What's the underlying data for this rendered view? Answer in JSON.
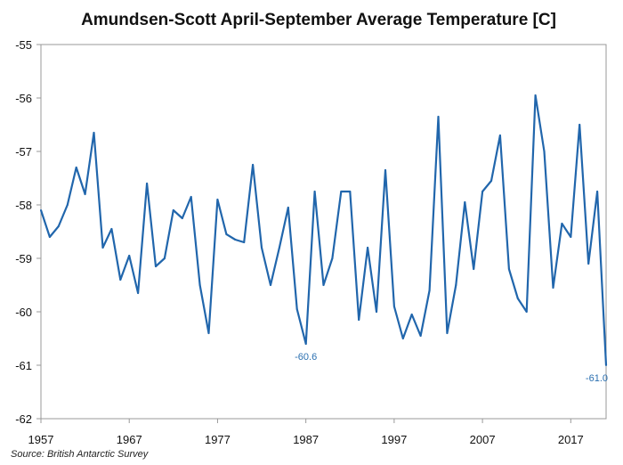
{
  "chart_data": {
    "type": "line",
    "title": "Amundsen-Scott April-September Average Temperature [C]",
    "source": "Source: British Antarctic Survey",
    "xlabel": "",
    "ylabel": "",
    "xlim": [
      1957,
      2021
    ],
    "ylim": [
      -62,
      -55
    ],
    "y_ticks": [
      -55,
      -56,
      -57,
      -58,
      -59,
      -60,
      -61,
      -62
    ],
    "x_ticks": [
      1957,
      1967,
      1977,
      1987,
      1997,
      2007,
      2017
    ],
    "grid": false,
    "line_color": "#2166ac",
    "series": [
      {
        "x": [
          1957,
          1958,
          1959,
          1960,
          1961,
          1962,
          1963,
          1964,
          1965,
          1966,
          1967,
          1968,
          1969,
          1970,
          1971,
          1972,
          1973,
          1974,
          1975,
          1976,
          1977,
          1978,
          1979,
          1980,
          1981,
          1982,
          1983,
          1984,
          1985,
          1986,
          1987,
          1988,
          1989,
          1990,
          1991,
          1992,
          1993,
          1994,
          1995,
          1996,
          1997,
          1998,
          1999,
          2000,
          2001,
          2002,
          2003,
          2004,
          2005,
          2006,
          2007,
          2008,
          2009,
          2010,
          2011,
          2012,
          2013,
          2014,
          2015,
          2016,
          2017,
          2018,
          2019,
          2020,
          2021
        ],
        "y": [
          -58.1,
          -58.6,
          -58.4,
          -58.0,
          -57.3,
          -57.8,
          -56.65,
          -58.8,
          -58.45,
          -59.4,
          -58.95,
          -59.65,
          -57.6,
          -59.15,
          -59.0,
          -58.1,
          -58.25,
          -57.85,
          -59.5,
          -60.4,
          -57.9,
          -58.55,
          -58.65,
          -58.7,
          -57.25,
          -58.8,
          -59.5,
          -58.8,
          -58.05,
          -59.95,
          -60.6,
          -57.75,
          -59.5,
          -59.0,
          -57.75,
          -57.75,
          -60.15,
          -58.8,
          -60.0,
          -57.35,
          -59.9,
          -60.5,
          -60.05,
          -60.45,
          -59.6,
          -56.35,
          -60.4,
          -59.5,
          -57.95,
          -59.2,
          -57.75,
          -57.55,
          -56.7,
          -59.2,
          -59.75,
          -60.0,
          -55.95,
          -57.0,
          -59.55,
          -58.35,
          -58.6,
          -56.5,
          -59.1,
          -57.75,
          -61.0
        ]
      }
    ],
    "annotations": [
      {
        "x": 1987,
        "y": -60.6,
        "text": "-60.6"
      },
      {
        "x": 2021,
        "y": -61.0,
        "text": "-61.0"
      }
    ]
  }
}
